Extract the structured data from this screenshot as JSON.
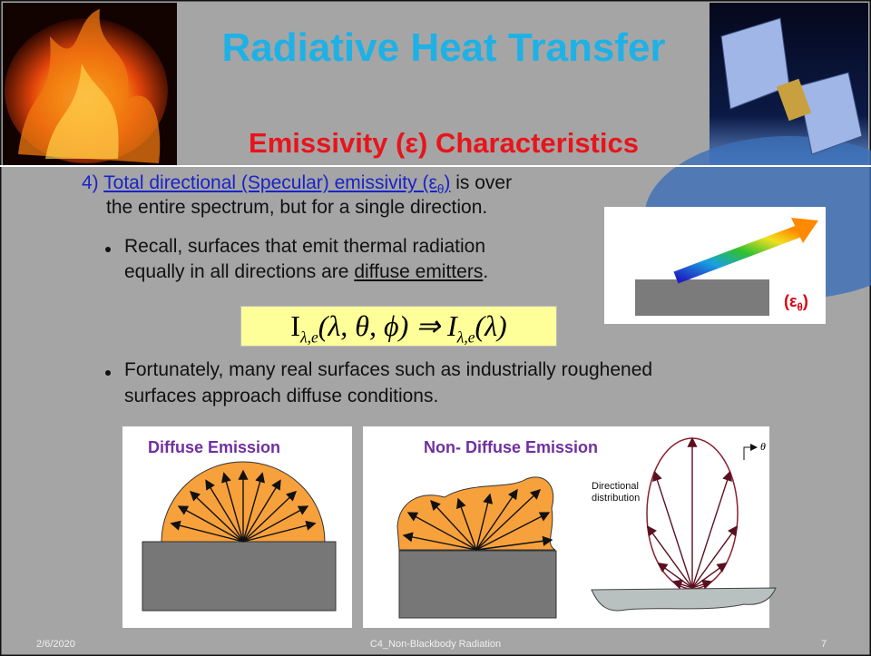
{
  "header": {
    "title": "Radiative Heat Transfer",
    "subtitle": "Emissivity (ε) Characteristics"
  },
  "body": {
    "item4": {
      "number": "4)",
      "link": "Total directional (Specular) emissivity (ε",
      "link_sub": "θ",
      "link_end": ")",
      "rest": " is over",
      "line2": "the entire spectrum, but for a single direction."
    },
    "bullets": [
      {
        "line1": "Recall, surfaces that emit thermal radiation",
        "line2": "equally in all directions are ",
        "underlined": "diffuse emitters",
        "end": "."
      },
      {
        "line1": "Fortunately, many real surfaces such as industrially roughened",
        "line2": "surfaces approach diffuse conditions."
      }
    ],
    "equation": [
      {
        "text": "I"
      },
      {
        "sub": "λ,e"
      },
      {
        "text": "(λ, θ, ϕ) ⇒ I"
      },
      {
        "sub": "λ,e"
      },
      {
        "text": "(λ)"
      }
    ],
    "inset_label": {
      "start": "(ε",
      "sub": "θ",
      "end": ")"
    }
  },
  "figures": [
    {
      "title": "Diffuse Emission"
    },
    {
      "title": "Non- Diffuse Emission",
      "axis_label": "θ",
      "annotation_line1": "Directional",
      "annotation_line2": "distribution"
    }
  ],
  "footer": {
    "date": "2/6/2020",
    "course": "C4_Non-Blackbody Radiation",
    "page": "7"
  }
}
